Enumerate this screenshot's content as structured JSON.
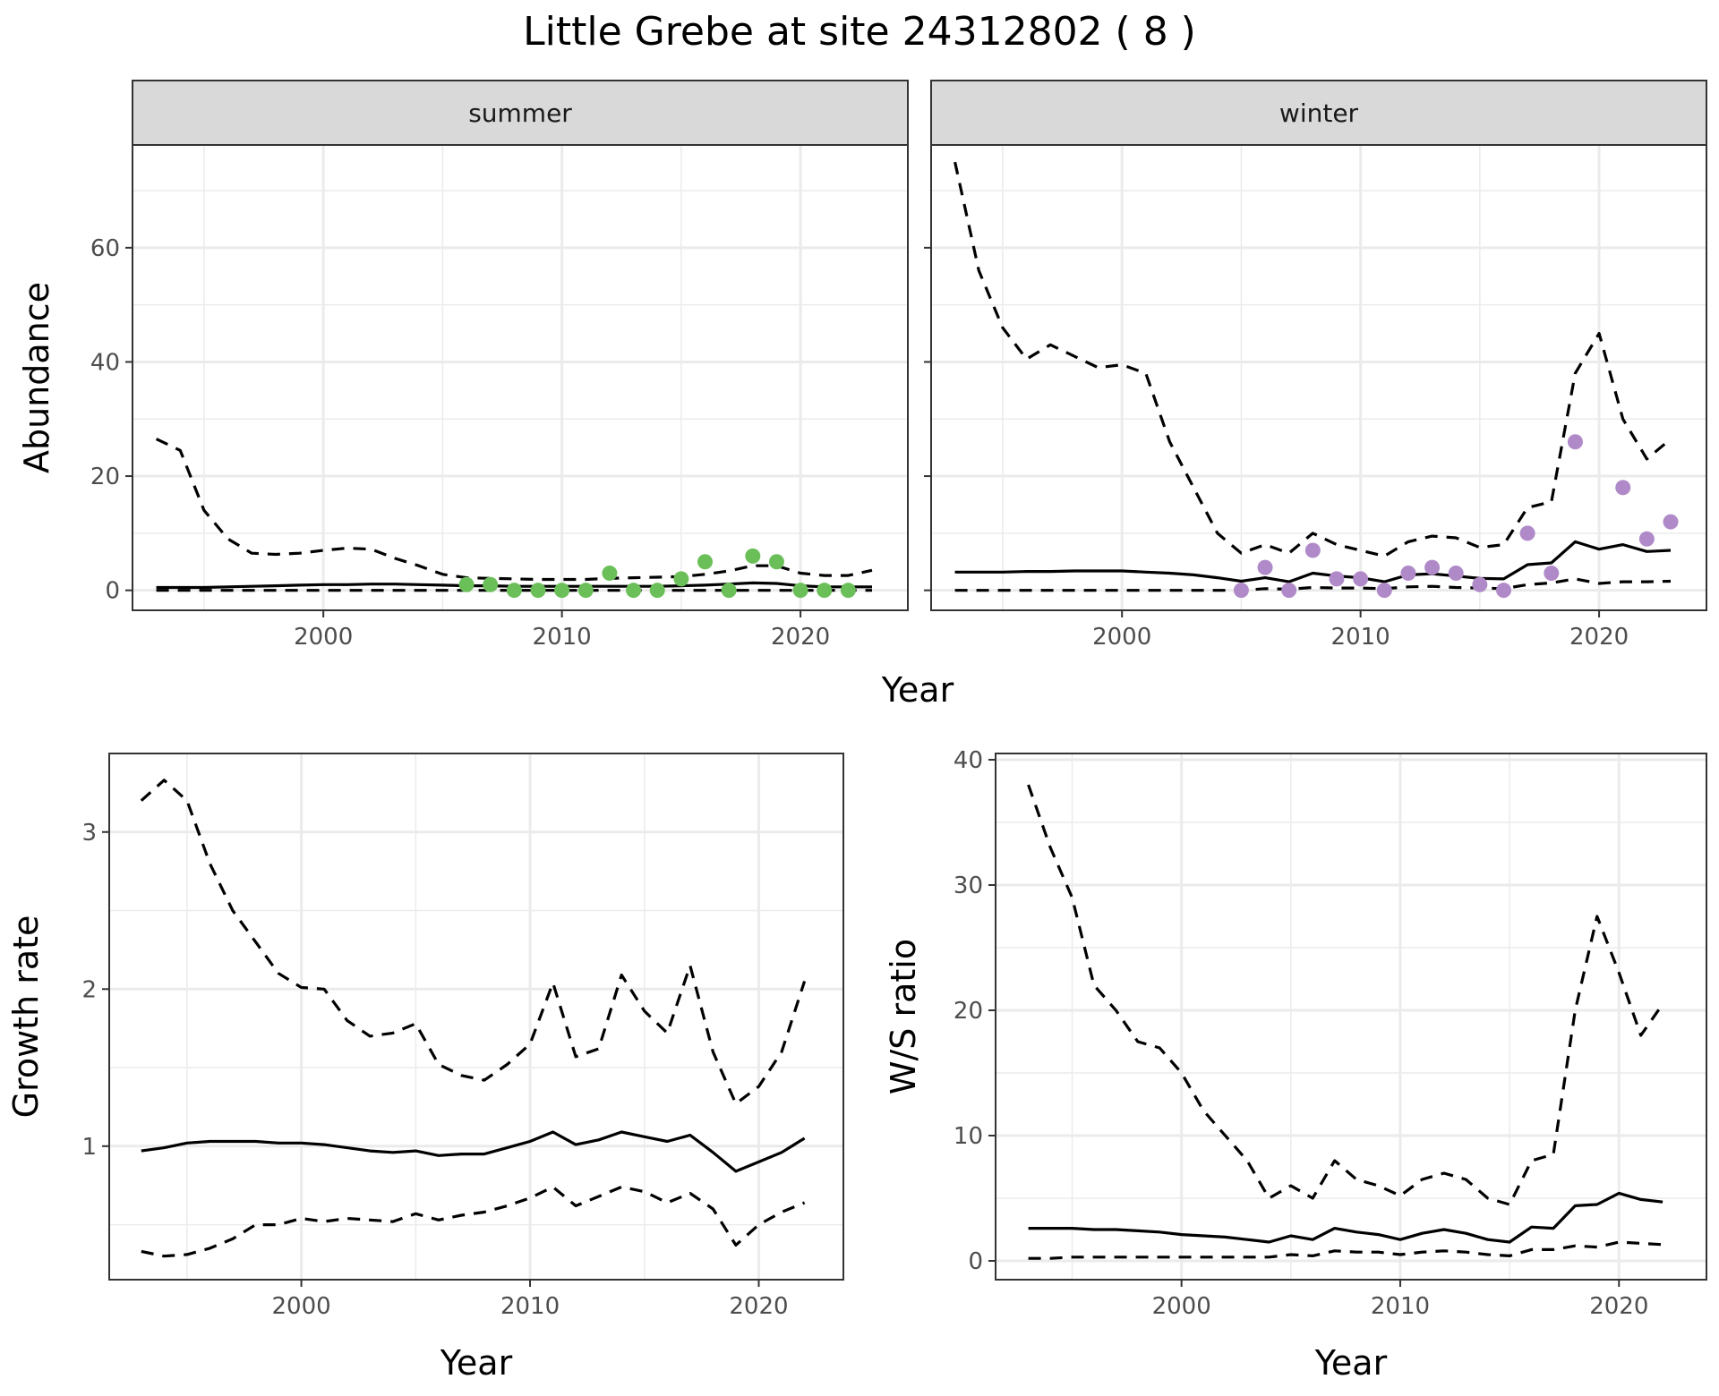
{
  "title": "Little Grebe at site 24312802 ( 8 )",
  "colors": {
    "summer_points": "#6bbf59",
    "winter_points": "#b08ac8",
    "lines": "#000000",
    "strip_fill": "#d9d9d9",
    "grid": "#ebebeb"
  },
  "chart_data": [
    {
      "type": "line",
      "id": "abundance-summer",
      "facet_label": "summer",
      "xlabel": "Year",
      "ylabel": "Abundance",
      "xlim": [
        1992,
        2024.5
      ],
      "ylim": [
        -3.5,
        78
      ],
      "xticks": [
        2000,
        2010,
        2020
      ],
      "yticks": [
        0,
        20,
        40,
        60
      ],
      "grid": true,
      "x": [
        1993,
        1994,
        1995,
        1996,
        1997,
        1998,
        1999,
        2000,
        2001,
        2002,
        2003,
        2004,
        2005,
        2006,
        2007,
        2008,
        2009,
        2010,
        2011,
        2012,
        2013,
        2014,
        2015,
        2016,
        2017,
        2018,
        2019,
        2020,
        2021,
        2022,
        2023
      ],
      "series": [
        {
          "role": "estimate",
          "style": "solid",
          "values": [
            0.5,
            0.5,
            0.5,
            0.6,
            0.7,
            0.8,
            0.9,
            1.0,
            1.0,
            1.1,
            1.1,
            1.0,
            0.9,
            0.8,
            0.8,
            0.7,
            0.7,
            0.7,
            0.7,
            0.7,
            0.7,
            0.7,
            0.8,
            0.9,
            1.1,
            1.3,
            1.2,
            0.8,
            0.6,
            0.6,
            0.6
          ]
        },
        {
          "role": "upper",
          "style": "dashed",
          "values": [
            26.5,
            24.5,
            14,
            9,
            6.5,
            6.3,
            6.5,
            7,
            7.4,
            7.2,
            5.6,
            4.3,
            2.8,
            2.2,
            2.1,
            2,
            1.9,
            1.9,
            1.9,
            2.1,
            2.2,
            2.3,
            2.4,
            2.8,
            3.4,
            4.3,
            4.3,
            3,
            2.6,
            2.6,
            3.5
          ]
        },
        {
          "role": "lower",
          "style": "dashed",
          "values": [
            0,
            0,
            0,
            0,
            0,
            0,
            0,
            0,
            0,
            0,
            0,
            0,
            0,
            0,
            0,
            0,
            0,
            0,
            0,
            0,
            0,
            0,
            0,
            0,
            0,
            0,
            0,
            0,
            0,
            0,
            0
          ]
        }
      ],
      "points": {
        "x": [
          2006,
          2007,
          2008,
          2009,
          2010,
          2011,
          2012,
          2013,
          2014,
          2015,
          2016,
          2017,
          2018,
          2019,
          2020,
          2021,
          2022
        ],
        "y": [
          1,
          1,
          0,
          0,
          0,
          0,
          3,
          0,
          0,
          2,
          5,
          0,
          6,
          5,
          0,
          0,
          0
        ]
      }
    },
    {
      "type": "line",
      "id": "abundance-winter",
      "facet_label": "winter",
      "xlabel": "Year",
      "ylabel": "Abundance",
      "xlim": [
        1992,
        2024.5
      ],
      "ylim": [
        -3.5,
        78
      ],
      "xticks": [
        2000,
        2010,
        2020
      ],
      "yticks": [
        0,
        20,
        40,
        60
      ],
      "grid": true,
      "x": [
        1993,
        1994,
        1995,
        1996,
        1997,
        1998,
        1999,
        2000,
        2001,
        2002,
        2003,
        2004,
        2005,
        2006,
        2007,
        2008,
        2009,
        2010,
        2011,
        2012,
        2013,
        2014,
        2015,
        2016,
        2017,
        2018,
        2019,
        2020,
        2021,
        2022,
        2023
      ],
      "series": [
        {
          "role": "estimate",
          "style": "solid",
          "values": [
            3.2,
            3.2,
            3.2,
            3.3,
            3.3,
            3.4,
            3.4,
            3.4,
            3.2,
            3,
            2.7,
            2.2,
            1.6,
            2.2,
            1.5,
            3,
            2.5,
            2.2,
            1.5,
            2.7,
            2.9,
            2.5,
            2.1,
            2,
            4.5,
            4.8,
            8.5,
            7.2,
            8,
            6.8,
            7
          ]
        },
        {
          "role": "upper",
          "style": "dashed",
          "values": [
            75,
            56,
            46,
            40.5,
            43,
            41,
            39,
            39.5,
            38,
            26,
            18,
            10,
            6.5,
            8,
            6.5,
            10,
            8,
            7,
            6,
            8.5,
            9.5,
            9.2,
            7.5,
            8,
            14.5,
            15.5,
            38,
            45,
            30,
            23,
            26.5
          ]
        },
        {
          "role": "lower",
          "style": "dashed",
          "values": [
            0,
            0,
            0,
            0,
            0,
            0,
            0,
            0,
            0,
            0,
            0,
            0,
            0,
            0.3,
            0.2,
            0.5,
            0.4,
            0.4,
            0.3,
            0.6,
            0.7,
            0.5,
            0.4,
            0.3,
            1,
            1.3,
            2,
            1.2,
            1.5,
            1.5,
            1.6
          ]
        }
      ],
      "points": {
        "x": [
          2005,
          2006,
          2007,
          2008,
          2009,
          2010,
          2011,
          2012,
          2013,
          2014,
          2015,
          2016,
          2017,
          2018,
          2019,
          2021,
          2022,
          2023
        ],
        "y": [
          0,
          4,
          0,
          7,
          2,
          2,
          0,
          3,
          4,
          3,
          1,
          0,
          10,
          3,
          26,
          18,
          9,
          12
        ]
      }
    },
    {
      "type": "line",
      "id": "growth-rate",
      "xlabel": "Year",
      "ylabel": "Growth rate",
      "xlim": [
        1991.6,
        2023.7
      ],
      "ylim": [
        0.15,
        3.5
      ],
      "xticks": [
        2000,
        2010,
        2020
      ],
      "yticks": [
        1,
        2,
        3
      ],
      "grid": true,
      "x": [
        1993,
        1994,
        1995,
        1996,
        1997,
        1998,
        1999,
        2000,
        2001,
        2002,
        2003,
        2004,
        2005,
        2006,
        2007,
        2008,
        2009,
        2010,
        2011,
        2012,
        2013,
        2014,
        2015,
        2016,
        2017,
        2018,
        2019,
        2020,
        2021,
        2022
      ],
      "series": [
        {
          "role": "estimate",
          "style": "solid",
          "values": [
            0.97,
            0.99,
            1.02,
            1.03,
            1.03,
            1.03,
            1.02,
            1.02,
            1.01,
            0.99,
            0.97,
            0.96,
            0.97,
            0.94,
            0.95,
            0.95,
            0.99,
            1.03,
            1.09,
            1.01,
            1.04,
            1.09,
            1.06,
            1.03,
            1.07,
            0.96,
            0.84,
            0.9,
            0.96,
            1.05
          ]
        },
        {
          "role": "upper",
          "style": "dashed",
          "values": [
            3.2,
            3.33,
            3.2,
            2.8,
            2.5,
            2.3,
            2.1,
            2.01,
            2.0,
            1.8,
            1.7,
            1.72,
            1.78,
            1.52,
            1.45,
            1.42,
            1.52,
            1.65,
            2.04,
            1.57,
            1.62,
            2.09,
            1.86,
            1.72,
            2.15,
            1.6,
            1.27,
            1.38,
            1.6,
            2.05
          ]
        },
        {
          "role": "lower",
          "style": "dashed",
          "values": [
            0.33,
            0.3,
            0.31,
            0.35,
            0.41,
            0.5,
            0.5,
            0.54,
            0.52,
            0.54,
            0.53,
            0.52,
            0.57,
            0.53,
            0.56,
            0.58,
            0.62,
            0.67,
            0.74,
            0.62,
            0.68,
            0.74,
            0.71,
            0.64,
            0.7,
            0.6,
            0.37,
            0.5,
            0.58,
            0.64
          ]
        }
      ]
    },
    {
      "type": "line",
      "id": "ws-ratio",
      "xlabel": "Year",
      "ylabel": "W/S ratio",
      "xlim": [
        1991.5,
        2024
      ],
      "ylim": [
        -1.5,
        40.5
      ],
      "xticks": [
        2000,
        2010,
        2020
      ],
      "yticks": [
        0,
        10,
        20,
        30,
        40
      ],
      "grid": true,
      "x": [
        1993,
        1994,
        1995,
        1996,
        1997,
        1998,
        1999,
        2000,
        2001,
        2002,
        2003,
        2004,
        2005,
        2006,
        2007,
        2008,
        2009,
        2010,
        2011,
        2012,
        2013,
        2014,
        2015,
        2016,
        2017,
        2018,
        2019,
        2020,
        2021,
        2022
      ],
      "series": [
        {
          "role": "estimate",
          "style": "solid",
          "values": [
            2.6,
            2.6,
            2.6,
            2.5,
            2.5,
            2.4,
            2.3,
            2.1,
            2,
            1.9,
            1.7,
            1.5,
            2,
            1.7,
            2.6,
            2.3,
            2.1,
            1.7,
            2.2,
            2.5,
            2.2,
            1.7,
            1.5,
            2.7,
            2.6,
            4.4,
            4.5,
            5.4,
            4.9,
            4.7
          ]
        },
        {
          "role": "upper",
          "style": "dashed",
          "values": [
            38,
            33,
            29,
            22,
            20,
            17.5,
            17,
            15,
            12,
            10,
            8,
            5,
            6,
            5,
            8,
            6.5,
            6,
            5.2,
            6.5,
            7,
            6.5,
            5,
            4.5,
            8,
            8.5,
            20,
            27.5,
            23,
            18,
            20.5
          ]
        },
        {
          "role": "lower",
          "style": "dashed",
          "values": [
            0.2,
            0.2,
            0.3,
            0.3,
            0.3,
            0.3,
            0.3,
            0.3,
            0.3,
            0.3,
            0.3,
            0.3,
            0.5,
            0.4,
            0.8,
            0.7,
            0.7,
            0.5,
            0.7,
            0.8,
            0.7,
            0.5,
            0.4,
            0.9,
            0.9,
            1.2,
            1.1,
            1.5,
            1.4,
            1.3
          ]
        }
      ]
    }
  ]
}
